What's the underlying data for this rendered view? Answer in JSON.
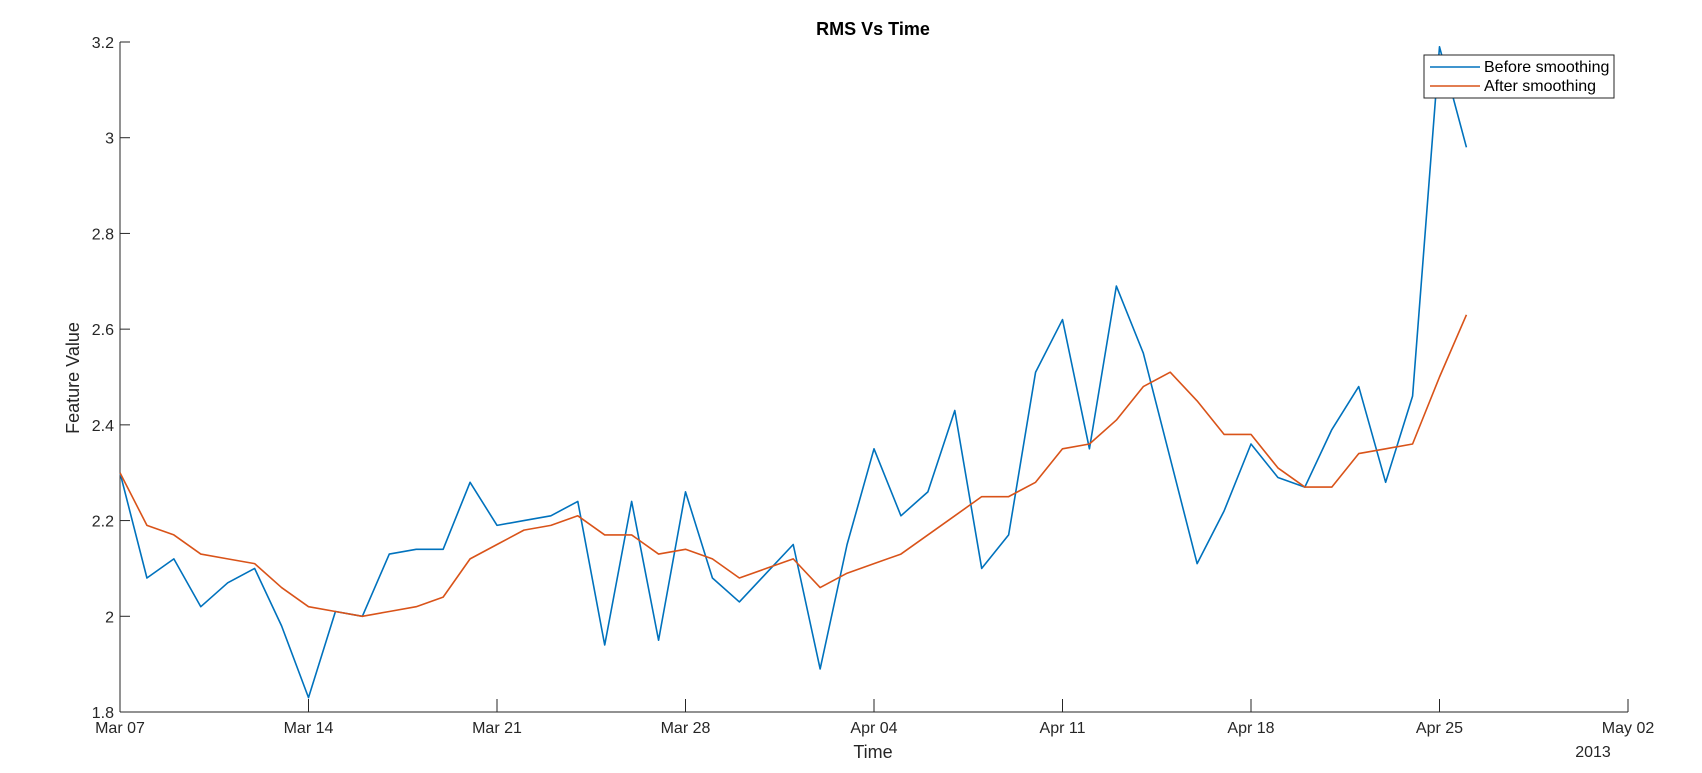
{
  "chart_data": {
    "type": "line",
    "title": "RMS Vs Time",
    "xlabel": "Time",
    "ylabel": "Feature Value",
    "year_label": "2013",
    "xlim": [
      "2013-03-07",
      "2013-05-02"
    ],
    "ylim": [
      1.8,
      3.2
    ],
    "x_ticks": [
      {
        "date": "2013-03-07",
        "label": "Mar 07"
      },
      {
        "date": "2013-03-14",
        "label": "Mar 14"
      },
      {
        "date": "2013-03-21",
        "label": "Mar 21"
      },
      {
        "date": "2013-03-28",
        "label": "Mar 28"
      },
      {
        "date": "2013-04-04",
        "label": "Apr 04"
      },
      {
        "date": "2013-04-11",
        "label": "Apr 11"
      },
      {
        "date": "2013-04-18",
        "label": "Apr 18"
      },
      {
        "date": "2013-04-25",
        "label": "Apr 25"
      },
      {
        "date": "2013-05-02",
        "label": "May 02"
      }
    ],
    "y_ticks": [
      {
        "value": 1.8,
        "label": "1.8"
      },
      {
        "value": 2.0,
        "label": "2"
      },
      {
        "value": 2.2,
        "label": "2.2"
      },
      {
        "value": 2.4,
        "label": "2.4"
      },
      {
        "value": 2.6,
        "label": "2.6"
      },
      {
        "value": 2.8,
        "label": "2.8"
      },
      {
        "value": 3.0,
        "label": "3"
      },
      {
        "value": 3.2,
        "label": "3.2"
      }
    ],
    "grid": false,
    "legend_position": "top-right",
    "x": [
      "2013-03-07",
      "2013-03-08",
      "2013-03-09",
      "2013-03-10",
      "2013-03-11",
      "2013-03-12",
      "2013-03-13",
      "2013-03-14",
      "2013-03-15",
      "2013-03-16",
      "2013-03-17",
      "2013-03-18",
      "2013-03-19",
      "2013-03-20",
      "2013-03-21",
      "2013-03-22",
      "2013-03-23",
      "2013-03-24",
      "2013-03-25",
      "2013-03-26",
      "2013-03-27",
      "2013-03-28",
      "2013-03-29",
      "2013-03-30",
      "2013-03-31",
      "2013-04-01",
      "2013-04-02",
      "2013-04-03",
      "2013-04-04",
      "2013-04-05",
      "2013-04-06",
      "2013-04-07",
      "2013-04-08",
      "2013-04-09",
      "2013-04-10",
      "2013-04-11",
      "2013-04-12",
      "2013-04-13",
      "2013-04-14",
      "2013-04-15",
      "2013-04-16",
      "2013-04-17",
      "2013-04-18",
      "2013-04-19",
      "2013-04-20",
      "2013-04-21",
      "2013-04-22",
      "2013-04-23",
      "2013-04-24",
      "2013-04-25",
      "2013-04-26"
    ],
    "series": [
      {
        "name": "Before smoothing",
        "color": "#0072BD",
        "values": [
          2.3,
          2.08,
          2.12,
          2.02,
          2.07,
          2.1,
          1.98,
          1.83,
          2.01,
          2.0,
          2.13,
          2.14,
          2.14,
          2.28,
          2.19,
          2.2,
          2.21,
          2.24,
          1.94,
          2.24,
          1.95,
          2.26,
          2.08,
          2.03,
          2.09,
          2.15,
          1.89,
          2.15,
          2.35,
          2.21,
          2.26,
          2.43,
          2.1,
          2.17,
          2.51,
          2.62,
          2.35,
          2.69,
          2.55,
          2.33,
          2.11,
          2.22,
          2.36,
          2.29,
          2.27,
          2.39,
          2.48,
          2.28,
          2.46,
          3.19,
          2.98
        ]
      },
      {
        "name": "After smoothing",
        "color": "#D95319",
        "values": [
          2.3,
          2.19,
          2.17,
          2.13,
          2.12,
          2.11,
          2.06,
          2.02,
          2.01,
          2.0,
          2.01,
          2.02,
          2.04,
          2.12,
          2.15,
          2.18,
          2.19,
          2.21,
          2.17,
          2.17,
          2.13,
          2.14,
          2.12,
          2.08,
          2.1,
          2.12,
          2.06,
          2.09,
          2.11,
          2.13,
          2.17,
          2.21,
          2.25,
          2.25,
          2.28,
          2.35,
          2.36,
          2.41,
          2.48,
          2.51,
          2.45,
          2.38,
          2.38,
          2.31,
          2.27,
          2.27,
          2.34,
          2.35,
          2.36,
          2.5,
          2.63
        ]
      }
    ]
  }
}
